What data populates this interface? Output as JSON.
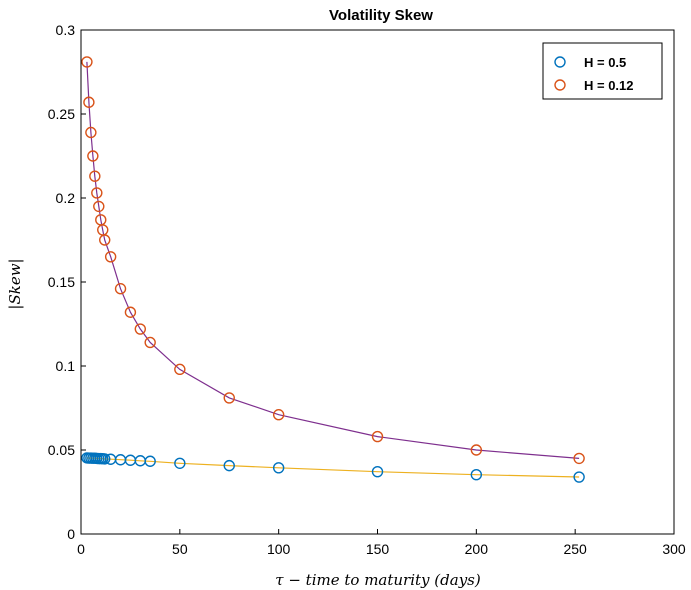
{
  "chart_data": {
    "type": "scatter",
    "title": "Volatility Skew",
    "xlabel": "τ − time to maturity (days)",
    "ylabel": "|Skew|",
    "xlim": [
      0,
      300
    ],
    "ylim": [
      0,
      0.3
    ],
    "xticks": [
      "0",
      "50",
      "100",
      "150",
      "200",
      "250",
      "300"
    ],
    "yticks": [
      "0",
      "0.05",
      "0.1",
      "0.15",
      "0.2",
      "0.25",
      "0.3"
    ],
    "legend_position": "top-right",
    "grid": false,
    "series": [
      {
        "name": "H = 0.5",
        "marker_color": "#0072BD",
        "fit_line_color": "#EDB120",
        "x": [
          3,
          4,
          5,
          6,
          7,
          8,
          9,
          10,
          11,
          12,
          15,
          20,
          25,
          30,
          35,
          50,
          75,
          100,
          150,
          200,
          252
        ],
        "y": [
          0.0453,
          0.0452,
          0.0452,
          0.0451,
          0.0451,
          0.045,
          0.0449,
          0.0449,
          0.0448,
          0.0447,
          0.0445,
          0.0442,
          0.0439,
          0.0436,
          0.0433,
          0.0421,
          0.0407,
          0.0394,
          0.0371,
          0.0353,
          0.0339
        ]
      },
      {
        "name": "H = 0.12",
        "marker_color": "#D95319",
        "fit_line_color": "#7E2F8E",
        "x": [
          3,
          4,
          5,
          6,
          7,
          8,
          9,
          10,
          11,
          12,
          15,
          20,
          25,
          30,
          35,
          50,
          75,
          100,
          150,
          200,
          252
        ],
        "y": [
          0.281,
          0.257,
          0.239,
          0.225,
          0.213,
          0.203,
          0.195,
          0.187,
          0.181,
          0.175,
          0.165,
          0.146,
          0.132,
          0.122,
          0.114,
          0.098,
          0.081,
          0.071,
          0.058,
          0.05,
          0.045
        ]
      }
    ]
  }
}
